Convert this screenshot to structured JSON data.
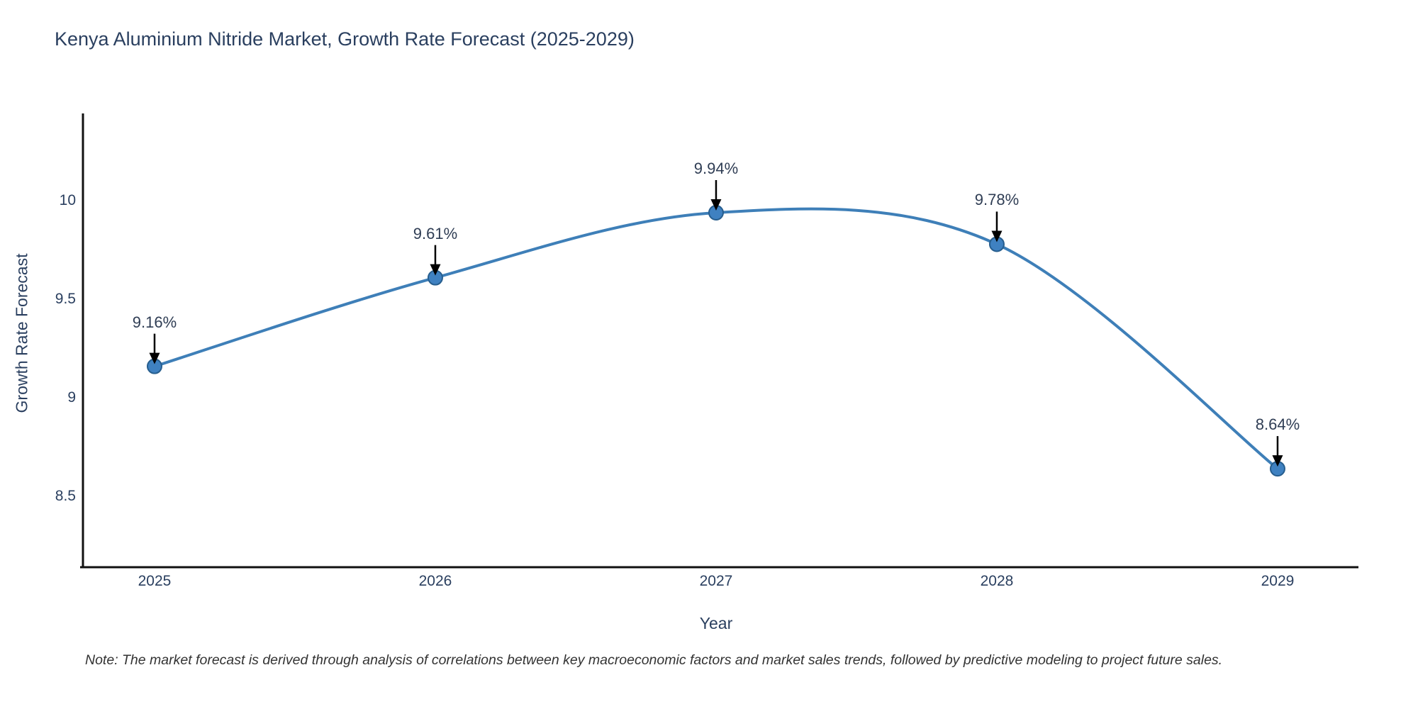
{
  "note": "Note: The market forecast is derived through analysis of correlations between key macroeconomic factors and market sales trends, followed by predictive modeling to project future sales.",
  "chart_data": {
    "type": "line",
    "title": "Kenya Aluminium Nitride Market, Growth Rate Forecast (2025-2029)",
    "xlabel": "Year",
    "ylabel": "Growth Rate Forecast",
    "x": [
      2025,
      2026,
      2027,
      2028,
      2029
    ],
    "y": [
      9.16,
      9.61,
      9.94,
      9.78,
      8.64
    ],
    "point_labels": [
      "9.16%",
      "9.61%",
      "9.94%",
      "9.78%",
      "8.64%"
    ],
    "xtick_labels": [
      "2025",
      "2026",
      "2027",
      "2028",
      "2029"
    ],
    "xticks": [
      2025,
      2026,
      2027,
      2028,
      2029
    ],
    "ytick_labels": [
      "8.5",
      "9",
      "9.5",
      "10"
    ],
    "yticks": [
      8.5,
      9,
      9.5,
      10
    ],
    "xlim": [
      2024.745,
      2029.288
    ],
    "ylim": [
      8.14,
      10.444
    ],
    "grid": false,
    "legend": false,
    "line_shape": "spline",
    "colors": {
      "line": "#3e7fb8",
      "marker_fill": "#3f81c1",
      "marker_edge": "#275e8e",
      "arrow": "#000000",
      "axis_line": "#111111",
      "text": "#2a3f5f"
    }
  }
}
